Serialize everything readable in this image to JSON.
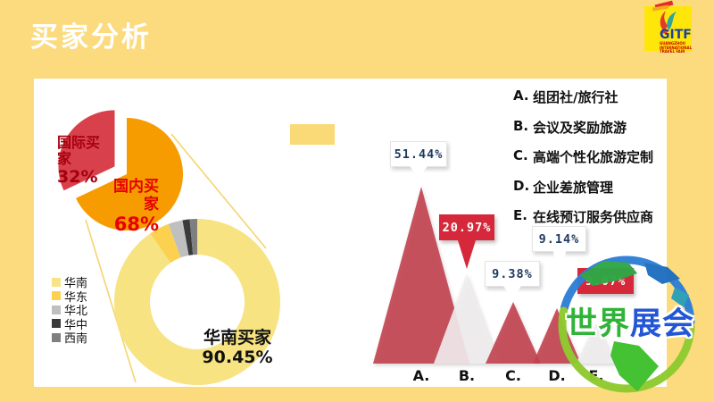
{
  "slide": {
    "title": "买家分析"
  },
  "logo": {
    "acronym": "GITF",
    "subtitle": "GUANGZHOU INTERNATIONAL TRAVEL FAIR"
  },
  "watermark": {
    "text_green": "世界",
    "text_blue": "展会"
  },
  "colors": {
    "background": "#FBDB7D",
    "panel": "#FFFFFF",
    "pie_domestic": "#F69B00",
    "pie_international": "#D8414B",
    "pie_intl_text": "#A6000F",
    "pie_dom_text": "#E60000",
    "donut_main": "#F7E381",
    "mountain_red": "#C2414F",
    "mountain_light": "#EFEDEE",
    "callout_red": "#D5293B",
    "callout_navy": "#1F3A5F",
    "connector_line": "#F5D470"
  },
  "chart_data": [
    {
      "type": "pie",
      "name": "buyer-origin-pie",
      "slices": [
        {
          "label": "国内买家",
          "pct": "68%",
          "value": 68,
          "color": "#F69B00",
          "text_color": "#E60000",
          "exploded": false
        },
        {
          "label": "国际买家",
          "pct": "32%",
          "value": 32,
          "color": "#D8414B",
          "text_color": "#A6000F",
          "exploded": true
        }
      ]
    },
    {
      "type": "pie",
      "name": "domestic-region-donut",
      "subtype": "donut",
      "label": "华南买家",
      "label_value": "90.45%",
      "segments": [
        {
          "label": "华南",
          "value": 90.45,
          "color": "#F7E381",
          "legend_color": "#F9E389"
        },
        {
          "label": "华东",
          "value": 3.9,
          "color": "#FBD14F",
          "legend_color": "#FBD14F"
        },
        {
          "label": "华北",
          "value": 2.8,
          "color": "#BFBFBF",
          "legend_color": "#BFBFBF"
        },
        {
          "label": "华中",
          "value": 1.4,
          "color": "#3A3A3A",
          "legend_color": "#3A3A3A"
        },
        {
          "label": "西南",
          "value": 1.45,
          "color": "#7F7F7F",
          "legend_color": "#7F7F7F"
        }
      ]
    },
    {
      "type": "area",
      "name": "buyer-type-mountains",
      "categories": [
        "A.",
        "B.",
        "C.",
        "D.",
        "E."
      ],
      "values": [
        51.44,
        20.97,
        9.38,
        9.14,
        9.07
      ],
      "labels": [
        "51.44%",
        "20.97%",
        "9.38%",
        "9.14%",
        "9.07%"
      ],
      "colors": [
        "#C2414F",
        "#EFEDEE",
        "#C2414F",
        "#C2414F",
        "#EFEDEE"
      ],
      "callout_styles": [
        "white",
        "red",
        "white",
        "white",
        "red"
      ],
      "ylim": [
        0,
        60
      ],
      "grid": false
    }
  ],
  "type_legend": [
    {
      "key": "A.",
      "label": "组团社/旅行社"
    },
    {
      "key": "B.",
      "label": "会议及奖励旅游"
    },
    {
      "key": "C.",
      "label": "高端个性化旅游定制"
    },
    {
      "key": "D.",
      "label": "企业差旅管理"
    },
    {
      "key": "E.",
      "label": "在线预订服务供应商"
    }
  ]
}
